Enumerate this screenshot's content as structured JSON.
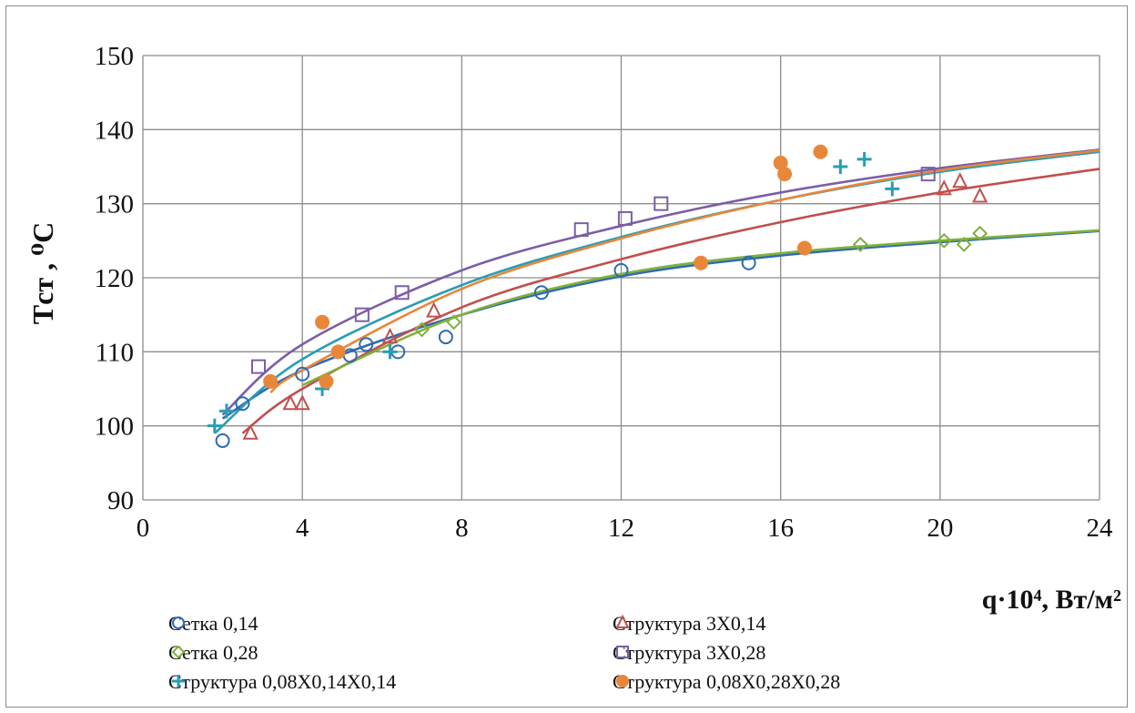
{
  "chart_data": {
    "type": "scatter",
    "xlabel": "q·10⁴, Вт/м²",
    "ylabel": "Tст , ⁰C",
    "xlim": [
      0,
      24
    ],
    "ylim": [
      90,
      150
    ],
    "x_ticks": [
      "0",
      "4",
      "8",
      "12",
      "16",
      "20",
      "24"
    ],
    "y_ticks": [
      "90",
      "100",
      "110",
      "120",
      "130",
      "140",
      "150"
    ],
    "grid": true,
    "legend_placement": "bottom",
    "series": [
      {
        "name": "Сетка 0,14",
        "marker": "circle-open",
        "color": "#2e6bb0",
        "points": [
          [
            2.0,
            98
          ],
          [
            2.5,
            103
          ],
          [
            4.0,
            107
          ],
          [
            5.2,
            109.5
          ],
          [
            5.6,
            111
          ],
          [
            6.4,
            110
          ],
          [
            7.6,
            112
          ],
          [
            10.0,
            118
          ],
          [
            12.0,
            121
          ],
          [
            15.2,
            122
          ]
        ],
        "trend": [
          [
            2.0,
            101
          ],
          [
            4,
            107.5
          ],
          [
            8,
            115
          ],
          [
            12,
            120.2
          ],
          [
            16,
            123
          ],
          [
            20,
            124.8
          ],
          [
            24,
            126.3
          ]
        ]
      },
      {
        "name": "Структура 3Х0,14",
        "marker": "triangle-open",
        "color": "#c0504d",
        "points": [
          [
            2.7,
            99
          ],
          [
            3.7,
            103
          ],
          [
            4.0,
            103
          ],
          [
            6.2,
            112
          ],
          [
            7.3,
            115.5
          ],
          [
            20.1,
            132
          ],
          [
            20.5,
            133
          ],
          [
            21.0,
            131
          ]
        ],
        "trend": [
          [
            2.5,
            99
          ],
          [
            4,
            105
          ],
          [
            8,
            116
          ],
          [
            12,
            122.5
          ],
          [
            16,
            127.5
          ],
          [
            20,
            131.5
          ],
          [
            24,
            134.7
          ]
        ]
      },
      {
        "name": "Сетка 0,28",
        "marker": "diamond-open",
        "color": "#7fb13a",
        "points": [
          [
            7.0,
            113
          ],
          [
            7.8,
            114
          ],
          [
            18.0,
            124.5
          ],
          [
            20.1,
            125
          ],
          [
            20.6,
            124.5
          ],
          [
            21.0,
            126
          ]
        ],
        "trend": [
          [
            4,
            105.5
          ],
          [
            8,
            115
          ],
          [
            12,
            120.5
          ],
          [
            16,
            123.3
          ],
          [
            20,
            125
          ],
          [
            24,
            126.4
          ]
        ]
      },
      {
        "name": "Структура 3Х0,28",
        "marker": "square-open",
        "color": "#7b5ea7",
        "points": [
          [
            2.9,
            108
          ],
          [
            5.5,
            115
          ],
          [
            6.5,
            118
          ],
          [
            11.0,
            126.5
          ],
          [
            12.1,
            128
          ],
          [
            13.0,
            130
          ],
          [
            19.7,
            134
          ]
        ],
        "trend": [
          [
            2.0,
            101.5
          ],
          [
            4,
            111
          ],
          [
            8,
            121
          ],
          [
            12,
            127
          ],
          [
            16,
            131.5
          ],
          [
            20,
            134.8
          ],
          [
            24,
            137.3
          ]
        ]
      },
      {
        "name": "Структура 0,08Х0,14Х0,14",
        "marker": "plus",
        "color": "#2a9db5",
        "points": [
          [
            1.8,
            100
          ],
          [
            2.1,
            102
          ],
          [
            4.5,
            105
          ],
          [
            6.2,
            110
          ],
          [
            17.5,
            135
          ],
          [
            18.1,
            136
          ],
          [
            18.8,
            132
          ]
        ],
        "trend": [
          [
            1.8,
            99
          ],
          [
            4,
            109
          ],
          [
            8,
            119
          ],
          [
            12,
            125.5
          ],
          [
            16,
            130.5
          ],
          [
            20,
            134.3
          ],
          [
            24,
            137
          ]
        ]
      },
      {
        "name": "Структура 0,08Х0,28Х0,28",
        "marker": "circle-filled",
        "color": "#e8873a",
        "points": [
          [
            3.2,
            106
          ],
          [
            4.5,
            114
          ],
          [
            4.9,
            110
          ],
          [
            4.6,
            106
          ],
          [
            14.0,
            122
          ],
          [
            16.0,
            135.5
          ],
          [
            16.1,
            134
          ],
          [
            16.6,
            124
          ],
          [
            17.0,
            137
          ]
        ],
        "trend": [
          [
            3.2,
            104.5
          ],
          [
            4,
            107.5
          ],
          [
            8,
            118.5
          ],
          [
            12,
            125.3
          ],
          [
            16,
            130.5
          ],
          [
            20,
            134.5
          ],
          [
            24,
            137.2
          ]
        ]
      }
    ]
  }
}
